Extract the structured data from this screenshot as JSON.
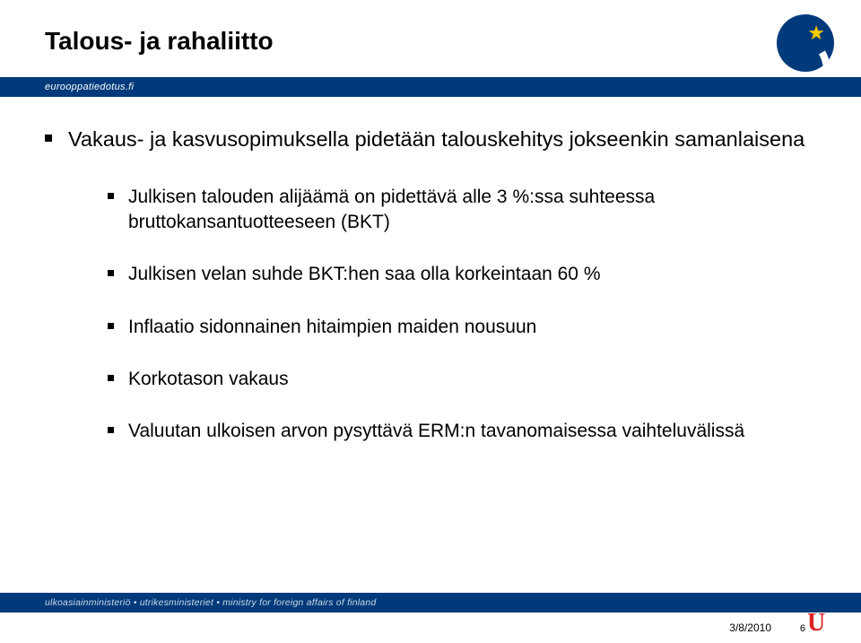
{
  "title": "Talous- ja rahaliitto",
  "brand": "eurooppatiedotus.fi",
  "bullets": {
    "l1": [
      "Vakaus- ja kasvusopimuksella pidetään talouskehitys jokseenkin samanlaisena"
    ],
    "l2": [
      "Julkisen talouden alijäämä on pidettävä alle 3 %:ssa suhteessa bruttokansantuotteeseen (BKT)",
      "Julkisen velan suhde BKT:hen saa olla korkeintaan 60 %",
      "Inflaatio sidonnainen hitaimpien maiden nousuun",
      "Korkotason vakaus",
      "Valuutan ulkoisen arvon pysyttävä ERM:n tavanomaisessa vaihteluvälissä"
    ]
  },
  "footer_ministry": "ulkoasiainministeriö • utrikesministeriet • ministry for foreign affairs of finland",
  "footer_date": "3/8/2010",
  "footer_page": "6",
  "colors": {
    "brand_blue": "#003a7b",
    "star_yellow": "#ffcc00",
    "u_red": "#d22"
  }
}
